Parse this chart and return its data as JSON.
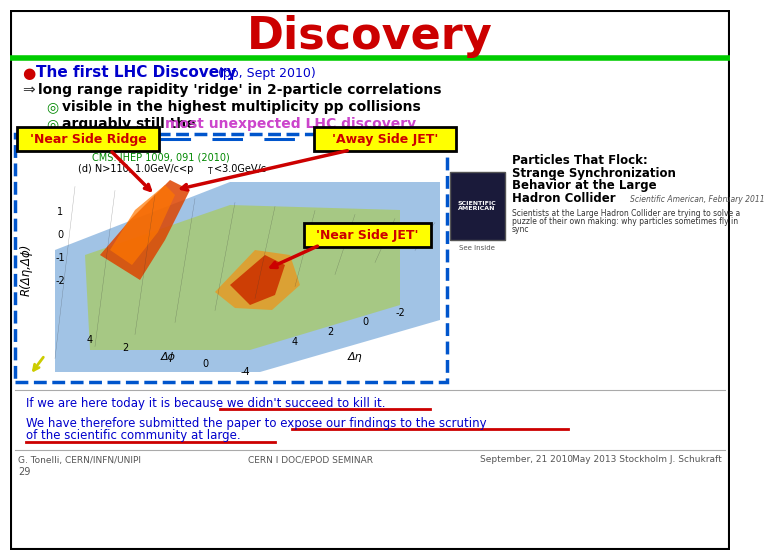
{
  "title": "Discovery",
  "title_color": "#CC0000",
  "title_fontsize": 32,
  "green_line_color": "#00CC00",
  "bullet1_text": "The first LHC Discovery",
  "bullet1_suffix": " (pp, Sept 2010)",
  "bullet1_color": "#0000CC",
  "bullet1_dot_color": "#CC0000",
  "bullet2_text": "long range rapidity 'ridge' in 2-particle correlations",
  "bullet2_color": "#000000",
  "sub1_text": "visible in the highest multiplicity pp collisions",
  "sub1_color": "#000000",
  "sub1_bullet_color": "#008800",
  "sub2_text_black": "arguably still the ",
  "sub2_text_colored": "most unexpected LHC discovery",
  "sub2_text_colored_color": "#CC44CC",
  "sub2_color": "#000000",
  "sub2_bullet_color": "#008800",
  "label_near_side_ridge": "'Near Side Ridge",
  "label_near_side_jet": "'Near Side JET'",
  "label_away_side_jet": "'Away Side JET'",
  "label_box_bg": "#FFFF00",
  "label_box_color": "#CC0000",
  "cms_ref1": "CMS: JHEP 1009, 091 (2010)",
  "cms_ref2": "(d) N>110, 1.0GeV/c<p",
  "cms_ref2b": "T",
  "cms_ref2c": "<3.0GeV/c",
  "cms_ref_color": "#008800",
  "plot_border_color": "#0055CC",
  "sci_am_title1": "Particles That Flock:",
  "sci_am_title2": "Strange Synchronization",
  "sci_am_title3": "Behavior at the Large",
  "sci_am_title4": "Hadron Collider",
  "sci_am_journal": "Scientific American, February 2011",
  "sci_am_body": "Scientists at the Large Hadron Collider are trying to solve a\npuzzle of their own making: why particles sometimes fly in\nsync",
  "bottom_text1": "If we are here today it is because we didn't succeed to kill it.",
  "bottom_text2": "We have therefore submitted the paper to expose our findings to the scrutiny",
  "bottom_text3": "of the scientific community at large.",
  "bottom_text_color": "#0000CC",
  "red_underline_color": "#CC0000",
  "footer_left": "G. Tonelli, CERN/INFN/UNIPI",
  "footer_center": "CERN I DOC/EPOD SEMINAR",
  "footer_right": "September, 21 2010",
  "footer_far_right": "May 2013 Stockholm J. Schukraft",
  "slide_number": "29",
  "bg_color": "#FFFFFF",
  "border_color": "#000000"
}
